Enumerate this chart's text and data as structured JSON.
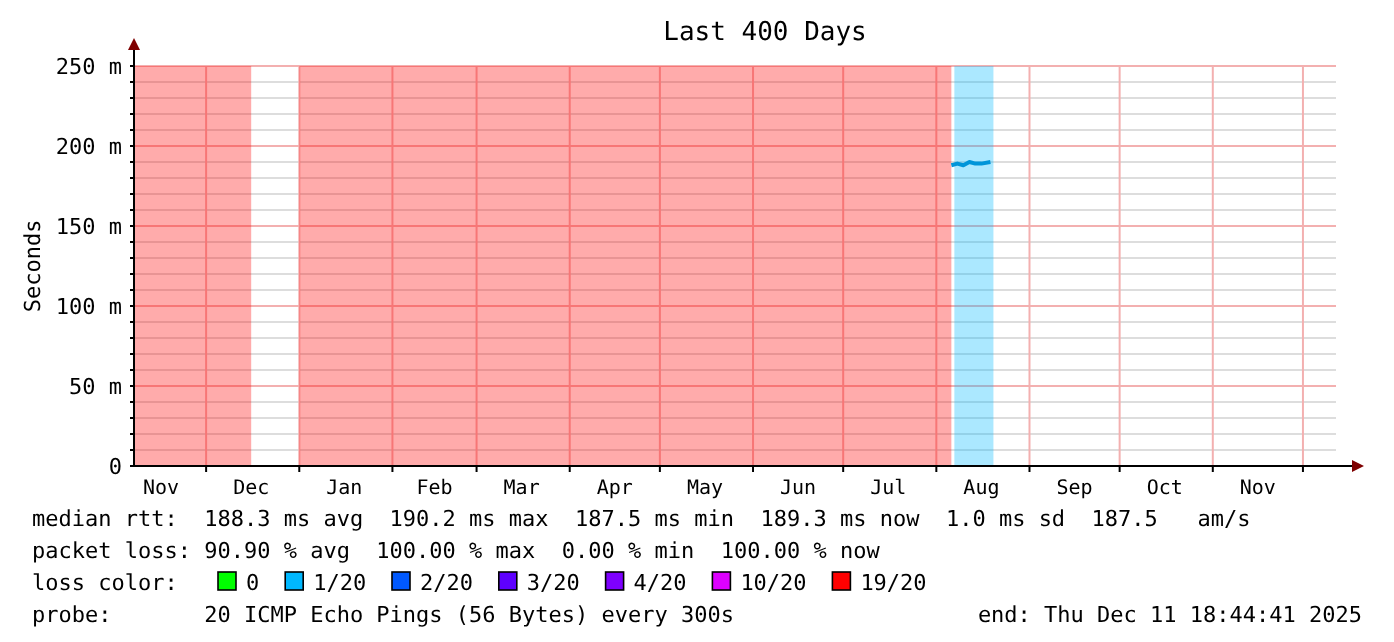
{
  "chart_data": {
    "type": "area",
    "title": "Last 400 Days",
    "ylabel": "Seconds",
    "xlim": [
      "2024-11-07",
      "2025-12-12"
    ],
    "xticks": [
      {
        "value": "2024-11-16",
        "label": "Nov"
      },
      {
        "value": "2024-12-01",
        "label": null
      },
      {
        "value": "2024-12-16",
        "label": "Dec"
      },
      {
        "value": "2025-01-01",
        "label": null
      },
      {
        "value": "2025-01-16",
        "label": "Jan"
      },
      {
        "value": "2025-02-01",
        "label": null
      },
      {
        "value": "2025-02-15",
        "label": "Feb"
      },
      {
        "value": "2025-03-01",
        "label": null
      },
      {
        "value": "2025-03-16",
        "label": "Mar"
      },
      {
        "value": "2025-04-01",
        "label": null
      },
      {
        "value": "2025-04-16",
        "label": "Apr"
      },
      {
        "value": "2025-05-01",
        "label": null
      },
      {
        "value": "2025-05-16",
        "label": "May"
      },
      {
        "value": "2025-06-01",
        "label": null
      },
      {
        "value": "2025-06-16",
        "label": "Jun"
      },
      {
        "value": "2025-07-01",
        "label": null
      },
      {
        "value": "2025-07-16",
        "label": "Jul"
      },
      {
        "value": "2025-08-01",
        "label": null
      },
      {
        "value": "2025-08-16",
        "label": "Aug"
      },
      {
        "value": "2025-09-01",
        "label": null
      },
      {
        "value": "2025-09-16",
        "label": "Sep"
      },
      {
        "value": "2025-10-01",
        "label": null
      },
      {
        "value": "2025-10-16",
        "label": "Oct"
      },
      {
        "value": "2025-11-01",
        "label": null
      },
      {
        "value": "2025-11-16",
        "label": "Nov"
      },
      {
        "value": "2025-12-01",
        "label": null
      }
    ],
    "ylim": [
      0,
      250
    ],
    "yticks": [
      0,
      {
        "value": 10,
        "label": null
      },
      {
        "value": 20,
        "label": null
      },
      {
        "value": 30,
        "label": null
      },
      {
        "value": 40,
        "label": null
      },
      {
        "value": 50,
        "label": "50 m"
      },
      {
        "value": 60,
        "label": null
      },
      {
        "value": 70,
        "label": null
      },
      {
        "value": 80,
        "label": null
      },
      {
        "value": 90,
        "label": null
      },
      {
        "value": 100,
        "label": "100 m"
      },
      {
        "value": 110,
        "label": null
      },
      {
        "value": 120,
        "label": null
      },
      {
        "value": 130,
        "label": null
      },
      {
        "value": 140,
        "label": null
      },
      {
        "value": 150,
        "label": "150 m"
      },
      {
        "value": 160,
        "label": null
      },
      {
        "value": 170,
        "label": null
      },
      {
        "value": 180,
        "label": null
      },
      {
        "value": 190,
        "label": null
      },
      {
        "value": 200,
        "label": "200 m"
      },
      {
        "value": 210,
        "label": null
      },
      {
        "value": 220,
        "label": null
      },
      {
        "value": 230,
        "label": null
      },
      {
        "value": 240,
        "label": null
      },
      {
        "value": 250,
        "label": "250 m"
      }
    ],
    "grid": true,
    "legend": "bottom",
    "legend_title": "loss color:",
    "series": [
      {
        "name": "0",
        "color": "#00ff00"
      },
      {
        "name": "1/20",
        "color": "#00b8ff",
        "x": [
          "2025-08-07",
          "2025-08-20"
        ],
        "values": [
          250,
          250
        ]
      },
      {
        "name": "2/20",
        "color": "#0059ff"
      },
      {
        "name": "3/20",
        "color": "#5e00ff"
      },
      {
        "name": "4/20",
        "color": "#7e00ff"
      },
      {
        "name": "10/20",
        "color": "#dd00ff"
      },
      {
        "name": "19/20",
        "color": "#ff0000",
        "x": [
          "2024-11-07",
          "2024-12-16",
          "2024-12-17",
          "2024-12-31",
          "2025-01-01",
          "2025-08-06"
        ],
        "values": [
          250,
          250,
          null,
          null,
          250,
          250
        ]
      },
      {
        "type": "line",
        "color": "#0095d9",
        "x": [
          "2025-08-06",
          "2025-08-08",
          "2025-08-10",
          "2025-08-12",
          "2025-08-14",
          "2025-08-16",
          "2025-08-19"
        ],
        "values": [
          188,
          189,
          188,
          190,
          189,
          189,
          190
        ]
      }
    ],
    "annotations": [
      "median rtt:  188.3 ms avg  190.2 ms max  187.5 ms min  189.3 ms now  1.0 ms sd  187.5   am/s",
      "packet loss: 90.90 % avg  100.00 % max  0.00 % min  100.00 % now",
      "probe:       20 ICMP Echo Pings (56 Bytes) every 300s",
      "end: Thu Dec 11 18:44:41 2025"
    ]
  }
}
